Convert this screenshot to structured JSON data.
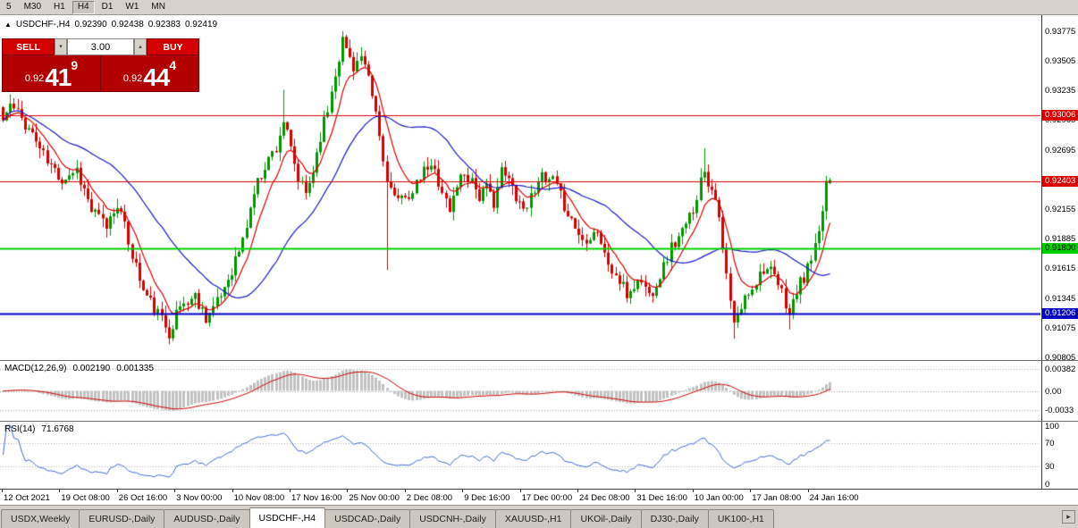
{
  "toolbar": {
    "items": [
      "5",
      "M30",
      "H1",
      "H4",
      "D1",
      "W1",
      "MN"
    ],
    "active": "H4"
  },
  "header": {
    "collapse_icon": "▲",
    "symbol": "USDCHF-,H4",
    "ohlc": [
      "0.92390",
      "0.92438",
      "0.92383",
      "0.92419"
    ]
  },
  "trade_panel": {
    "sell_label": "SELL",
    "buy_label": "BUY",
    "volume": "3.00",
    "spinner_down_icon": "▾",
    "spinner_up_icon": "▴",
    "sell_price": {
      "prefix": "0.92",
      "big": "41",
      "sup": "9"
    },
    "buy_price": {
      "prefix": "0.92",
      "big": "44",
      "sup": "4"
    }
  },
  "price_axis": {
    "min": 0.90781,
    "max": 0.93919,
    "ticks": [
      "0.93775",
      "0.93505",
      "0.93235",
      "0.92965",
      "0.92695",
      "0.92425",
      "0.92155",
      "0.91885",
      "0.91615",
      "0.91345",
      "0.91075",
      "0.90805"
    ]
  },
  "levels": [
    {
      "price": 0.93006,
      "label": "0.93006",
      "color": "#d80000",
      "text_color": "#ffffff",
      "width": 1
    },
    {
      "price": 0.92403,
      "label": "0.92403",
      "color": "#d80000",
      "text_color": "#ffffff",
      "width": 1
    },
    {
      "price": 0.918,
      "label": "0.91800",
      "color": "#00d000",
      "text_color": "#000000",
      "width": 2
    },
    {
      "price": 0.91206,
      "label": "0.91206",
      "color": "#0000c0",
      "text_color": "#ffffff",
      "width": 2
    }
  ],
  "macd_panel": {
    "title": "MACD(12,26,9)",
    "value": "0.002190",
    "signal": "0.001335",
    "axis_labels": [
      "0.00382",
      "0.00",
      "-0.0033"
    ]
  },
  "rsi_panel": {
    "title": "RSI(14)",
    "value": "71.6768",
    "axis_labels": [
      "100",
      "70",
      "30",
      "0"
    ],
    "levels": [
      70,
      30
    ]
  },
  "time_axis": {
    "labels": [
      "12 Oct 2021",
      "19 Oct 08:00",
      "26 Oct 16:00",
      "3 Nov 00:00",
      "10 Nov 08:00",
      "17 Nov 16:00",
      "25 Nov 00:00",
      "2 Dec 08:00",
      "9 Dec 16:00",
      "17 Dec 00:00",
      "24 Dec 08:00",
      "31 Dec 16:00",
      "10 Jan 00:00",
      "17 Jan 08:00",
      "24 Jan 16:00"
    ]
  },
  "tabs": {
    "items": [
      "USDX,Weekly",
      "EURUSD-,Daily",
      "AUDUSD-,Daily",
      "USDCHF-,H4",
      "USDCAD-,Daily",
      "USDCNH-,Daily",
      "XAUUSD-,H1",
      "UKOil-,Daily",
      "DJ30-,Daily",
      "UK100-,H1"
    ],
    "active": "USDCHF-,H4",
    "scroll_icon": "▸"
  },
  "colors": {
    "up": "#009600",
    "down": "#d40000",
    "ma_fast": "#dd0000",
    "ma_slow": "#1a1acc",
    "macd_hist": "#c2c2c2",
    "macd_signal": "#cc0000",
    "rsi_line": "#4169d0",
    "bg": "#ffffff"
  },
  "chart_data": {
    "type": "candlestick",
    "symbol": "USDCHF-",
    "timeframe": "H4",
    "visible_price_range": [
      0.90781,
      0.93919
    ],
    "current_ohlc": {
      "open": 0.9239,
      "high": 0.92438,
      "low": 0.92383,
      "close": 0.92419
    },
    "candle_count": 225,
    "seed": 11,
    "noise": 0.00065,
    "wick": 0.0009,
    "close_anchors": [
      [
        0,
        0.9296
      ],
      [
        2,
        0.931
      ],
      [
        5,
        0.9298
      ],
      [
        8,
        0.9284
      ],
      [
        12,
        0.9258
      ],
      [
        16,
        0.9243
      ],
      [
        20,
        0.9252
      ],
      [
        24,
        0.9214
      ],
      [
        28,
        0.92
      ],
      [
        31,
        0.9222
      ],
      [
        34,
        0.9186
      ],
      [
        38,
        0.9141
      ],
      [
        42,
        0.912
      ],
      [
        45,
        0.9104
      ],
      [
        48,
        0.9127
      ],
      [
        52,
        0.9136
      ],
      [
        55,
        0.9118
      ],
      [
        58,
        0.9129
      ],
      [
        62,
        0.9161
      ],
      [
        65,
        0.9186
      ],
      [
        68,
        0.9231
      ],
      [
        71,
        0.9256
      ],
      [
        74,
        0.9272
      ],
      [
        76,
        0.9296
      ],
      [
        78,
        0.9268
      ],
      [
        80,
        0.9242
      ],
      [
        82,
        0.9229
      ],
      [
        84,
        0.9251
      ],
      [
        86,
        0.9283
      ],
      [
        88,
        0.9306
      ],
      [
        90,
        0.9341
      ],
      [
        92,
        0.9369
      ],
      [
        95,
        0.9346
      ],
      [
        97,
        0.9353
      ],
      [
        99,
        0.9331
      ],
      [
        101,
        0.9303
      ],
      [
        103,
        0.9259
      ],
      [
        105,
        0.9233
      ],
      [
        107,
        0.9219
      ],
      [
        109,
        0.9231
      ],
      [
        111,
        0.9228
      ],
      [
        113,
        0.9244
      ],
      [
        115,
        0.9253
      ],
      [
        117,
        0.925
      ],
      [
        119,
        0.9233
      ],
      [
        121,
        0.9213
      ],
      [
        123,
        0.9239
      ],
      [
        125,
        0.9249
      ],
      [
        127,
        0.9243
      ],
      [
        129,
        0.9227
      ],
      [
        131,
        0.9233
      ],
      [
        133,
        0.9223
      ],
      [
        135,
        0.9249
      ],
      [
        137,
        0.9241
      ],
      [
        139,
        0.9229
      ],
      [
        141,
        0.9216
      ],
      [
        143,
        0.9226
      ],
      [
        145,
        0.9246
      ],
      [
        147,
        0.9239
      ],
      [
        149,
        0.9241
      ],
      [
        151,
        0.9226
      ],
      [
        153,
        0.9213
      ],
      [
        155,
        0.9199
      ],
      [
        157,
        0.9187
      ],
      [
        159,
        0.9193
      ],
      [
        161,
        0.9197
      ],
      [
        163,
        0.9173
      ],
      [
        165,
        0.9159
      ],
      [
        167,
        0.9149
      ],
      [
        169,
        0.9137
      ],
      [
        171,
        0.9146
      ],
      [
        173,
        0.9151
      ],
      [
        175,
        0.9137
      ],
      [
        177,
        0.9149
      ],
      [
        179,
        0.9163
      ],
      [
        181,
        0.9181
      ],
      [
        183,
        0.9189
      ],
      [
        185,
        0.9199
      ],
      [
        187,
        0.9217
      ],
      [
        189,
        0.9241
      ],
      [
        190,
        0.9253
      ],
      [
        191,
        0.9241
      ],
      [
        193,
        0.9229
      ],
      [
        195,
        0.9177
      ],
      [
        197,
        0.9131
      ],
      [
        198,
        0.9109
      ],
      [
        200,
        0.9126
      ],
      [
        202,
        0.9141
      ],
      [
        204,
        0.9151
      ],
      [
        206,
        0.9163
      ],
      [
        208,
        0.9157
      ],
      [
        210,
        0.9146
      ],
      [
        212,
        0.9131
      ],
      [
        213,
        0.9119
      ],
      [
        215,
        0.9141
      ],
      [
        217,
        0.9153
      ],
      [
        219,
        0.9169
      ],
      [
        221,
        0.9189
      ],
      [
        223,
        0.9241
      ],
      [
        224,
        0.92419
      ]
    ],
    "spikes": [
      {
        "i": 2,
        "high": 0.9317
      },
      {
        "i": 45,
        "low": 0.90925
      },
      {
        "i": 76,
        "high": 0.9324
      },
      {
        "i": 92,
        "high": 0.93775
      },
      {
        "i": 104,
        "low": 0.916
      },
      {
        "i": 190,
        "high": 0.9271
      },
      {
        "i": 198,
        "low": 0.90975
      },
      {
        "i": 213,
        "low": 0.9106
      }
    ],
    "overlays": [
      {
        "type": "ema",
        "period": 8,
        "color_key": "ma_fast"
      },
      {
        "type": "sma",
        "period": 30,
        "color_key": "ma_slow"
      }
    ],
    "indicators": [
      {
        "name": "MACD",
        "params": [
          12,
          26,
          9
        ],
        "current": [
          0.00219,
          0.001335
        ]
      },
      {
        "name": "RSI",
        "params": [
          14
        ],
        "current": 71.6768
      }
    ],
    "hlines": [
      0.93006,
      0.92403,
      0.918,
      0.91206
    ]
  }
}
